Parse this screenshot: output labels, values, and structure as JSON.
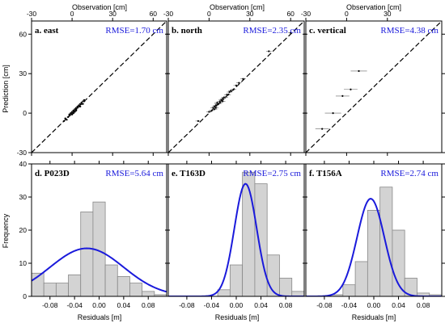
{
  "colors": {
    "fit": "#1a1adb",
    "hist_fill": "#d3d3d3",
    "hist_stroke": "#888888",
    "rmse_text": "#1a1adb"
  },
  "figure": {
    "top_xlabel": "Observation [cm]",
    "top_ylabel": "Prediction [cm]",
    "bottom_xlabel": "Residuals [m]",
    "bottom_ylabel": "Frequency"
  },
  "chart_data": [
    {
      "type": "scatter",
      "id": "a",
      "title": "a. east",
      "rmse": "RMSE=1.70 cm",
      "xlim": [
        -30,
        70
      ],
      "ylim": [
        -30,
        70
      ],
      "xticks": [
        -30,
        0,
        30,
        60
      ],
      "yticks": [
        -30,
        0,
        30,
        60
      ],
      "one_to_one_line": true,
      "points": [
        [
          -6,
          -6,
          1
        ],
        [
          -4,
          -5,
          1
        ],
        [
          -3,
          -3,
          1
        ],
        [
          -2,
          -2,
          1
        ],
        [
          -1,
          -1,
          1
        ],
        [
          0,
          0,
          1
        ],
        [
          0,
          1,
          1
        ],
        [
          1,
          0,
          1
        ],
        [
          1,
          1,
          1
        ],
        [
          2,
          2,
          1
        ],
        [
          2,
          3,
          1
        ],
        [
          3,
          3,
          1
        ],
        [
          3,
          4,
          1
        ],
        [
          4,
          4,
          1
        ],
        [
          4,
          5,
          1
        ],
        [
          5,
          6,
          1
        ],
        [
          5,
          5,
          1
        ],
        [
          6,
          7,
          1
        ],
        [
          7,
          7,
          1
        ],
        [
          7,
          8,
          1
        ],
        [
          8,
          9,
          1
        ],
        [
          9,
          9,
          1
        ],
        [
          -2,
          -1,
          1
        ],
        [
          -1,
          0,
          1
        ],
        [
          0,
          -1,
          1
        ],
        [
          1,
          2,
          1
        ],
        [
          2,
          1,
          1
        ],
        [
          3,
          2,
          1
        ],
        [
          -5,
          -4,
          1
        ],
        [
          6,
          5,
          1
        ],
        [
          8,
          7,
          1
        ],
        [
          9,
          10,
          1
        ]
      ]
    },
    {
      "type": "scatter",
      "id": "b",
      "title": "b. north",
      "rmse": "RMSE=2.35 cm",
      "xlim": [
        -30,
        70
      ],
      "ylim": [
        -30,
        70
      ],
      "xticks": [
        -30,
        0,
        30,
        60
      ],
      "yticks": [
        -30,
        0,
        30,
        60
      ],
      "one_to_one_line": true,
      "points": [
        [
          -8,
          -6,
          2
        ],
        [
          0,
          1,
          2
        ],
        [
          2,
          2,
          2
        ],
        [
          3,
          4,
          2
        ],
        [
          4,
          5,
          2
        ],
        [
          5,
          6,
          2
        ],
        [
          5,
          4,
          2
        ],
        [
          6,
          7,
          2
        ],
        [
          6,
          8,
          2
        ],
        [
          7,
          7,
          2
        ],
        [
          8,
          9,
          2
        ],
        [
          9,
          10,
          2
        ],
        [
          10,
          11,
          2
        ],
        [
          10,
          9,
          2
        ],
        [
          12,
          12,
          2
        ],
        [
          13,
          14,
          2
        ],
        [
          14,
          14,
          2
        ],
        [
          15,
          16,
          2
        ],
        [
          16,
          17,
          2
        ],
        [
          18,
          18,
          2
        ],
        [
          20,
          21,
          2
        ],
        [
          22,
          23,
          2
        ],
        [
          25,
          26,
          2
        ],
        [
          44,
          47,
          2
        ],
        [
          60,
          61,
          2
        ],
        [
          8,
          8,
          2
        ],
        [
          11,
          12,
          2
        ],
        [
          4,
          3,
          2
        ]
      ]
    },
    {
      "type": "scatter",
      "id": "c",
      "title": "c. vertical",
      "rmse": "RMSE=4.38 cm",
      "xlim": [
        -30,
        70
      ],
      "ylim": [
        -30,
        70
      ],
      "xticks": [
        -30,
        0,
        30
      ],
      "yticks": [
        -30,
        0,
        30,
        60
      ],
      "one_to_one_line": true,
      "points": [
        [
          -18,
          -12,
          5
        ],
        [
          -10,
          0,
          6
        ],
        [
          -3,
          13,
          5
        ],
        [
          3,
          18,
          5
        ],
        [
          9,
          32,
          6
        ]
      ]
    },
    {
      "type": "bar",
      "id": "d",
      "title": "d. P023D",
      "rmse": "RMSE=5.64 cm",
      "bin_edges": [
        -0.11,
        -0.09,
        -0.07,
        -0.05,
        -0.03,
        -0.01,
        0.01,
        0.03,
        0.05,
        0.07,
        0.09,
        0.11
      ],
      "values": [
        7,
        4,
        4,
        6.5,
        25.5,
        28.5,
        9.5,
        6,
        4,
        1.5,
        0.5
      ],
      "normal_fit": {
        "mean": -0.02,
        "sd": 0.06,
        "peak": 14.5
      },
      "xlim": [
        -0.11,
        0.11
      ],
      "ylim": [
        0,
        40
      ],
      "xticks": [
        -0.08,
        -0.04,
        0.0,
        0.04,
        0.08
      ],
      "xtick_labels": [
        "-0.08",
        "-0.04",
        "0.00",
        "0.04",
        "0.08"
      ],
      "yticks": [
        0,
        10,
        20,
        30,
        40
      ]
    },
    {
      "type": "bar",
      "id": "e",
      "title": "e. T163D",
      "rmse": "RMSE=2.75 cm",
      "bin_edges": [
        -0.11,
        -0.09,
        -0.07,
        -0.05,
        -0.03,
        -0.01,
        0.01,
        0.03,
        0.05,
        0.07,
        0.09,
        0.11
      ],
      "values": [
        0,
        0,
        0,
        0,
        2,
        9.5,
        37.5,
        34,
        12.5,
        5.5,
        1.5
      ],
      "normal_fit": {
        "mean": 0.015,
        "sd": 0.018,
        "peak": 34
      },
      "xlim": [
        -0.11,
        0.11
      ],
      "ylim": [
        0,
        40
      ],
      "xticks": [
        -0.08,
        -0.04,
        0.0,
        0.04,
        0.08
      ],
      "xtick_labels": [
        "-0.08",
        "-0.04",
        "0.00",
        "0.04",
        "0.08"
      ],
      "yticks": [
        0,
        10,
        20,
        30,
        40
      ]
    },
    {
      "type": "bar",
      "id": "f",
      "title": "f. T156A",
      "rmse": "RMSE=2.74 cm",
      "bin_edges": [
        -0.11,
        -0.09,
        -0.07,
        -0.05,
        -0.03,
        -0.01,
        0.01,
        0.03,
        0.05,
        0.07,
        0.09,
        0.11
      ],
      "values": [
        0,
        0,
        0.5,
        3.5,
        10.5,
        26,
        33,
        20,
        5.5,
        1,
        0.5
      ],
      "normal_fit": {
        "mean": -0.005,
        "sd": 0.022,
        "peak": 29.5
      },
      "xlim": [
        -0.11,
        0.11
      ],
      "ylim": [
        0,
        40
      ],
      "xticks": [
        -0.08,
        -0.04,
        0.0,
        0.04,
        0.08
      ],
      "xtick_labels": [
        "-0.08",
        "-0.04",
        "0.00",
        "0.04",
        "0.08"
      ],
      "yticks": [
        0,
        10,
        20,
        30,
        40
      ]
    }
  ]
}
